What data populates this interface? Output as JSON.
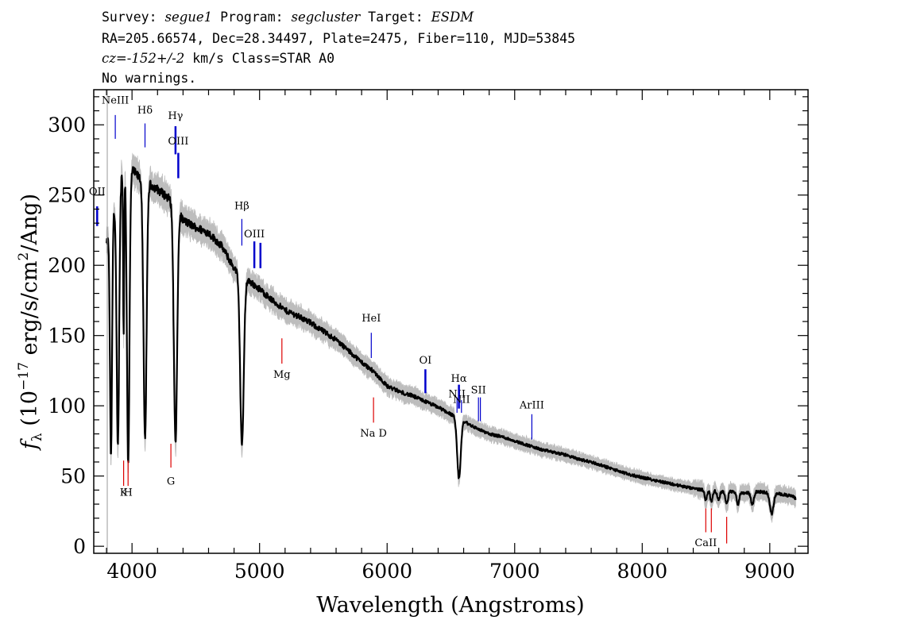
{
  "header": {
    "line1": [
      {
        "text": "Survey: ",
        "italic": false
      },
      {
        "text": "segue1",
        "italic": true
      },
      {
        "text": " Program: ",
        "italic": false
      },
      {
        "text": "segcluster",
        "italic": true
      },
      {
        "text": " Target: ",
        "italic": false
      },
      {
        "text": "ESDM",
        "italic": true
      }
    ],
    "line2": [
      {
        "text": "RA=205.66574, Dec=28.34497, Plate=2475, Fiber=110, MJD=53845",
        "italic": false
      }
    ],
    "line3": [
      {
        "text": "cz=-152+/-2",
        "italic": true
      },
      {
        "text": " km/s Class=STAR A0",
        "italic": false
      }
    ],
    "line4": [
      {
        "text": "No warnings.",
        "italic": false
      }
    ]
  },
  "chart_data": {
    "type": "line",
    "xlabel": "Wavelength (Angstroms)",
    "ylabel": "f_λ (10^-17 erg/s/cm^2/Ang)",
    "xlim": [
      3700,
      9300
    ],
    "ylim": [
      -5,
      325
    ],
    "xticks": [
      4000,
      5000,
      6000,
      7000,
      8000,
      9000
    ],
    "yticks": [
      0,
      50,
      100,
      150,
      200,
      250,
      300
    ],
    "grid": false,
    "colors": {
      "flux": "#000000",
      "error": "#bdbdbd",
      "emission": "#0000cc",
      "absorption": "#dd0000"
    },
    "continuum": [
      [
        3800,
        215
      ],
      [
        3840,
        230
      ],
      [
        3900,
        262
      ],
      [
        3950,
        270
      ],
      [
        4000,
        268
      ],
      [
        4050,
        263
      ],
      [
        4120,
        259
      ],
      [
        4200,
        254
      ],
      [
        4300,
        247
      ],
      [
        4350,
        241
      ],
      [
        4400,
        232
      ],
      [
        4500,
        227
      ],
      [
        4600,
        223
      ],
      [
        4700,
        214
      ],
      [
        4800,
        198
      ],
      [
        4900,
        190
      ],
      [
        5000,
        183
      ],
      [
        5100,
        175
      ],
      [
        5200,
        168
      ],
      [
        5300,
        164
      ],
      [
        5400,
        159
      ],
      [
        5500,
        153
      ],
      [
        5600,
        147
      ],
      [
        5700,
        139
      ],
      [
        5800,
        131
      ],
      [
        5900,
        124
      ],
      [
        6000,
        114
      ],
      [
        6100,
        110
      ],
      [
        6200,
        107
      ],
      [
        6300,
        103
      ],
      [
        6400,
        99
      ],
      [
        6500,
        94
      ],
      [
        6600,
        89
      ],
      [
        6700,
        84
      ],
      [
        6800,
        80
      ],
      [
        6900,
        78
      ],
      [
        7000,
        75
      ],
      [
        7100,
        72
      ],
      [
        7200,
        69
      ],
      [
        7300,
        67
      ],
      [
        7400,
        65
      ],
      [
        7500,
        62
      ],
      [
        7600,
        60
      ],
      [
        7700,
        57
      ],
      [
        7800,
        54
      ],
      [
        7900,
        51
      ],
      [
        8000,
        49
      ],
      [
        8100,
        47
      ],
      [
        8200,
        45
      ],
      [
        8300,
        43
      ],
      [
        8400,
        41
      ],
      [
        8500,
        40
      ],
      [
        8600,
        39
      ],
      [
        8700,
        39
      ],
      [
        8800,
        38
      ],
      [
        8900,
        39
      ],
      [
        9000,
        38
      ],
      [
        9100,
        37
      ],
      [
        9200,
        35
      ]
    ],
    "absorption_features": [
      {
        "center": 3835,
        "depth_to": 62,
        "width": 8
      },
      {
        "center": 3889,
        "depth_to": 70,
        "width": 10
      },
      {
        "center": 3934,
        "depth_to": 150,
        "width": 4
      },
      {
        "center": 3970,
        "depth_to": 60,
        "width": 10
      },
      {
        "center": 4102,
        "depth_to": 75,
        "width": 12
      },
      {
        "center": 4341,
        "depth_to": 73,
        "width": 13
      },
      {
        "center": 4862,
        "depth_to": 72,
        "width": 14
      },
      {
        "center": 6563,
        "depth_to": 48,
        "width": 14
      },
      {
        "center": 8498,
        "depth_to": 33,
        "width": 9
      },
      {
        "center": 8542,
        "depth_to": 32,
        "width": 9
      },
      {
        "center": 8598,
        "depth_to": 33,
        "width": 9
      },
      {
        "center": 8662,
        "depth_to": 30,
        "width": 10
      },
      {
        "center": 8750,
        "depth_to": 30,
        "width": 10
      },
      {
        "center": 8863,
        "depth_to": 30,
        "width": 12
      },
      {
        "center": 9015,
        "depth_to": 23,
        "width": 14
      },
      {
        "center": 9230,
        "depth_to": 27,
        "width": 14
      }
    ],
    "line_markers": [
      {
        "label": "OII",
        "wave": 3727,
        "type": "emission",
        "y1": 228,
        "y2": 242,
        "label_y": 250
      },
      {
        "label": "NeIII",
        "wave": 3869,
        "type": "emission",
        "y1": 290,
        "y2": 307,
        "label_y": 315
      },
      {
        "label": "Hδ",
        "wave": 4102,
        "type": "emission",
        "y1": 284,
        "y2": 301,
        "label_y": 308
      },
      {
        "label": "Hγ",
        "wave": 4341,
        "type": "emission",
        "y1": 279,
        "y2": 299,
        "label_y": 304
      },
      {
        "label": "OIII",
        "wave": 4363,
        "type": "emission",
        "y1": 262,
        "y2": 280,
        "label_y": 286
      },
      {
        "label": "Hβ",
        "wave": 4861,
        "type": "emission",
        "y1": 214,
        "y2": 233,
        "label_y": 240
      },
      {
        "label": "OIII",
        "wave": 4959,
        "type": "emission",
        "y1": 198,
        "y2": 217,
        "label_y": 220
      },
      {
        "label": "OIII",
        "wave": 5007,
        "type": "emission",
        "y1": 198,
        "y2": 216,
        "label_y": null
      },
      {
        "label": "HeI",
        "wave": 5876,
        "type": "emission",
        "y1": 134,
        "y2": 152,
        "label_y": 160
      },
      {
        "label": "OI",
        "wave": 6300,
        "type": "emission",
        "y1": 109,
        "y2": 126,
        "label_y": 130
      },
      {
        "label": "NII",
        "wave": 6548,
        "type": "emission",
        "y1": 95,
        "y2": 106,
        "label_y": 106
      },
      {
        "label": "Hα",
        "wave": 6563,
        "type": "emission",
        "y1": 98,
        "y2": 115,
        "label_y": 117
      },
      {
        "label": "NII",
        "wave": 6583,
        "type": "emission",
        "y1": 95,
        "y2": 104,
        "label_y": 102
      },
      {
        "label": "SII",
        "wave": 6716,
        "type": "emission",
        "y1": 89,
        "y2": 106,
        "label_y": 109
      },
      {
        "label": "SII",
        "wave": 6731,
        "type": "emission",
        "y1": 89,
        "y2": 106,
        "label_y": null
      },
      {
        "label": "ArIII",
        "wave": 7135,
        "type": "emission",
        "y1": 76,
        "y2": 94,
        "label_y": 98
      },
      {
        "label": "Mg",
        "wave": 5175,
        "type": "absorption",
        "y1": 130,
        "y2": 148,
        "label_y": 120
      },
      {
        "label": "Na D",
        "wave": 5893,
        "type": "absorption",
        "y1": 88,
        "y2": 106,
        "label_y": 78
      },
      {
        "label": "K",
        "wave": 3934,
        "type": "absorption",
        "y1": 43,
        "y2": 61,
        "label_y": 36
      },
      {
        "label": "H",
        "wave": 3969,
        "type": "absorption",
        "y1": 43,
        "y2": 61,
        "label_y": 36
      },
      {
        "label": "G",
        "wave": 4305,
        "type": "absorption",
        "y1": 56,
        "y2": 73,
        "label_y": 44
      },
      {
        "label": "CaII",
        "wave": 8498,
        "type": "absorption",
        "y1": 10,
        "y2": 27,
        "label_y": 0
      },
      {
        "label": "CaII",
        "wave": 8542,
        "type": "absorption",
        "y1": 10,
        "y2": 27,
        "label_y": null
      },
      {
        "label": "CaII",
        "wave": 8662,
        "type": "absorption",
        "y1": 2,
        "y2": 21,
        "label_y": null
      }
    ]
  }
}
